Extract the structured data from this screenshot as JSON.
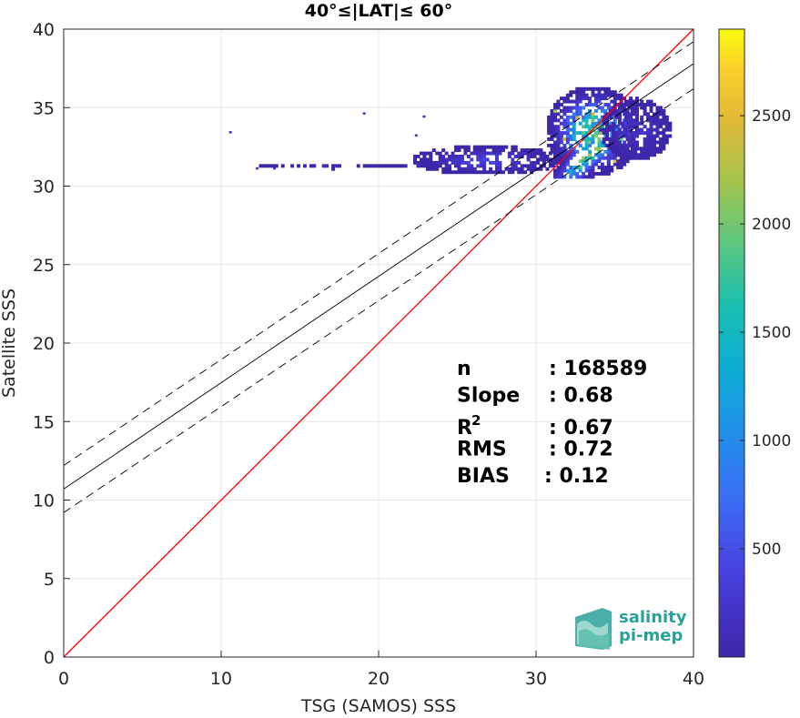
{
  "chart_data": {
    "type": "heatmap",
    "title": "40°≤|LAT|≤ 60°",
    "xlabel": "TSG (SAMOS) SSS",
    "ylabel": "Satellite SSS",
    "xlim": [
      0,
      40
    ],
    "ylim": [
      0,
      40
    ],
    "x_ticks": [
      "0",
      "10",
      "20",
      "30",
      "40"
    ],
    "y_ticks": [
      "0",
      "5",
      "10",
      "15",
      "20",
      "25",
      "30",
      "35",
      "40"
    ],
    "grid": true,
    "colorbar": {
      "range": [
        0,
        2900
      ],
      "ticks": [
        "500",
        "1000",
        "1500",
        "2000",
        "2500"
      ],
      "colormap": "parula"
    },
    "lines": [
      {
        "role": "one-to-one",
        "color": "#ff0000",
        "style": "solid",
        "points": [
          [
            0,
            0
          ],
          [
            40,
            40
          ]
        ]
      },
      {
        "role": "regression",
        "color": "#000000",
        "style": "solid",
        "points": [
          [
            0,
            10.7
          ],
          [
            40,
            37.8
          ]
        ]
      },
      {
        "role": "upper-bound",
        "color": "#000000",
        "style": "dashed",
        "points": [
          [
            0,
            12.2
          ],
          [
            40,
            39.2
          ]
        ]
      },
      {
        "role": "lower-bound",
        "color": "#000000",
        "style": "dashed",
        "points": [
          [
            0,
            9.2
          ],
          [
            40,
            36.2
          ]
        ]
      }
    ],
    "density_clusters": [
      {
        "x": [
          30.5,
          36.5
        ],
        "y": [
          30.5,
          36.3
        ],
        "peak_count": 2600
      },
      {
        "x": [
          22.0,
          31.5
        ],
        "y": [
          30.6,
          32.5
        ],
        "peak_count": 500
      },
      {
        "x": [
          12.0,
          22.0
        ],
        "y": [
          31.0,
          31.3
        ],
        "peak_count": 150
      },
      {
        "x": [
          34.0,
          38.5
        ],
        "y": [
          31.5,
          35.5
        ],
        "peak_count": 300
      }
    ],
    "outliers": [
      {
        "x": 10.5,
        "y": 33.4
      },
      {
        "x": 19.0,
        "y": 34.6
      },
      {
        "x": 22.8,
        "y": 34.4
      },
      {
        "x": 22.3,
        "y": 33.2
      },
      {
        "x": 12.2,
        "y": 31.1
      },
      {
        "x": 13.3,
        "y": 31.1
      }
    ],
    "stats": [
      {
        "label": "n",
        "value": ": 168589"
      },
      {
        "label": "Slope",
        "value": ": 0.68"
      },
      {
        "label": "R",
        "sup": "2",
        "value": ": 0.67"
      },
      {
        "label": "RMS",
        "value": ": 0.72"
      },
      {
        "label": "BIAS",
        "value": ": 0.12"
      }
    ]
  },
  "logo": {
    "line1": "salinity",
    "line2": "pi-mep",
    "color": "#2aa198"
  }
}
